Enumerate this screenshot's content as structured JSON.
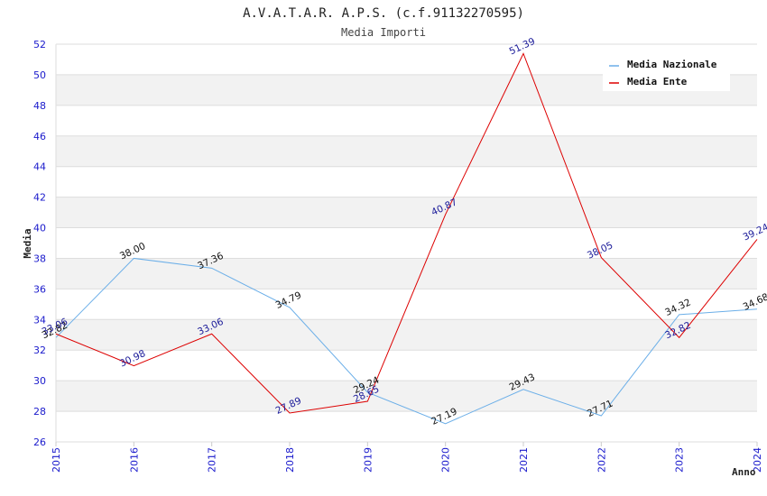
{
  "chart_data": {
    "type": "line",
    "title": "A.V.A.T.A.R. A.P.S. (c.f.91132270595)",
    "subtitle": "Media Importi",
    "xlabel": "Anno",
    "ylabel": "Media",
    "ylim": [
      26,
      52
    ],
    "ytick_step": 2,
    "grid": true,
    "legend_position": "top-right",
    "categories": [
      "2015",
      "2016",
      "2017",
      "2018",
      "2019",
      "2020",
      "2021",
      "2022",
      "2023",
      "2024"
    ],
    "series": [
      {
        "name": "Media Nazionale",
        "color": "#6aaee8",
        "label_color": "#111111",
        "values": [
          32.82,
          38.0,
          37.36,
          34.79,
          29.24,
          27.19,
          29.43,
          27.71,
          34.32,
          34.68
        ],
        "labels": [
          "32.82",
          "38.00",
          "37.36",
          "34.79",
          "29.24",
          "27.19",
          "29.43",
          "27.71",
          "34.32",
          "34.68"
        ]
      },
      {
        "name": "Media Ente",
        "color": "#dd0000",
        "label_color": "#1a1a99",
        "values": [
          33.06,
          30.98,
          33.06,
          27.89,
          28.65,
          40.87,
          51.39,
          38.05,
          32.82,
          39.24
        ],
        "labels": [
          "33.06",
          "30.98",
          "33.06",
          "27.89",
          "28.65",
          "40.87",
          "51.39",
          "38.05",
          "32.82",
          "39.24"
        ]
      }
    ]
  }
}
